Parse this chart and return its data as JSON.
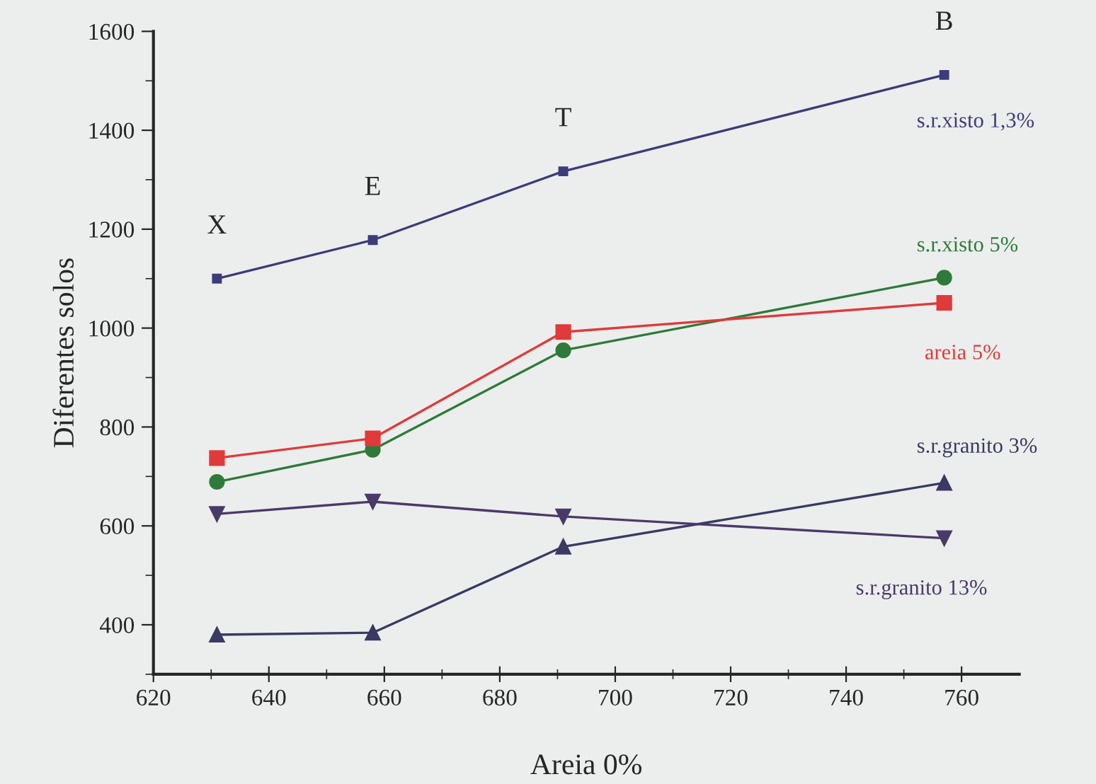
{
  "chart_data": {
    "type": "line",
    "xlabel": "Areia 0%",
    "ylabel": "Diferentes solos",
    "x": [
      631,
      658,
      691,
      757
    ],
    "series": [
      {
        "name": "s.r.xisto 1,3%",
        "color": "#3c3c7a",
        "marker": "square",
        "values": [
          1100,
          1178,
          1317,
          1512
        ]
      },
      {
        "name": "s.r.xisto 5%",
        "color": "#2f7a3a",
        "marker": "circle",
        "values": [
          689,
          754,
          955,
          1102
        ]
      },
      {
        "name": "areia 5%",
        "color": "#e03a3a",
        "marker": "square",
        "values": [
          737,
          777,
          992,
          1051
        ]
      },
      {
        "name": "s.r.granito 3%",
        "color": "#3a3a62",
        "marker": "triangle",
        "values": [
          380,
          384,
          558,
          687
        ]
      },
      {
        "name": "s.r.granito 13%",
        "color": "#4a3a68",
        "marker": "triangle_down",
        "values": [
          624,
          649,
          619,
          575
        ]
      }
    ],
    "annotations": [
      {
        "text": "X",
        "x": 631,
        "y": 1100
      },
      {
        "text": "E",
        "x": 658,
        "y": 1178
      },
      {
        "text": "T",
        "x": 691,
        "y": 1317
      },
      {
        "text": "B",
        "x": 757,
        "y": 1512
      }
    ],
    "xlim": [
      620,
      770
    ],
    "xticks": [
      620,
      640,
      660,
      680,
      700,
      720,
      740,
      760
    ],
    "ylim": [
      300,
      1600
    ],
    "yticks": [
      400,
      600,
      800,
      1000,
      1200,
      1400,
      1600
    ],
    "grid": false,
    "legend": false
  }
}
